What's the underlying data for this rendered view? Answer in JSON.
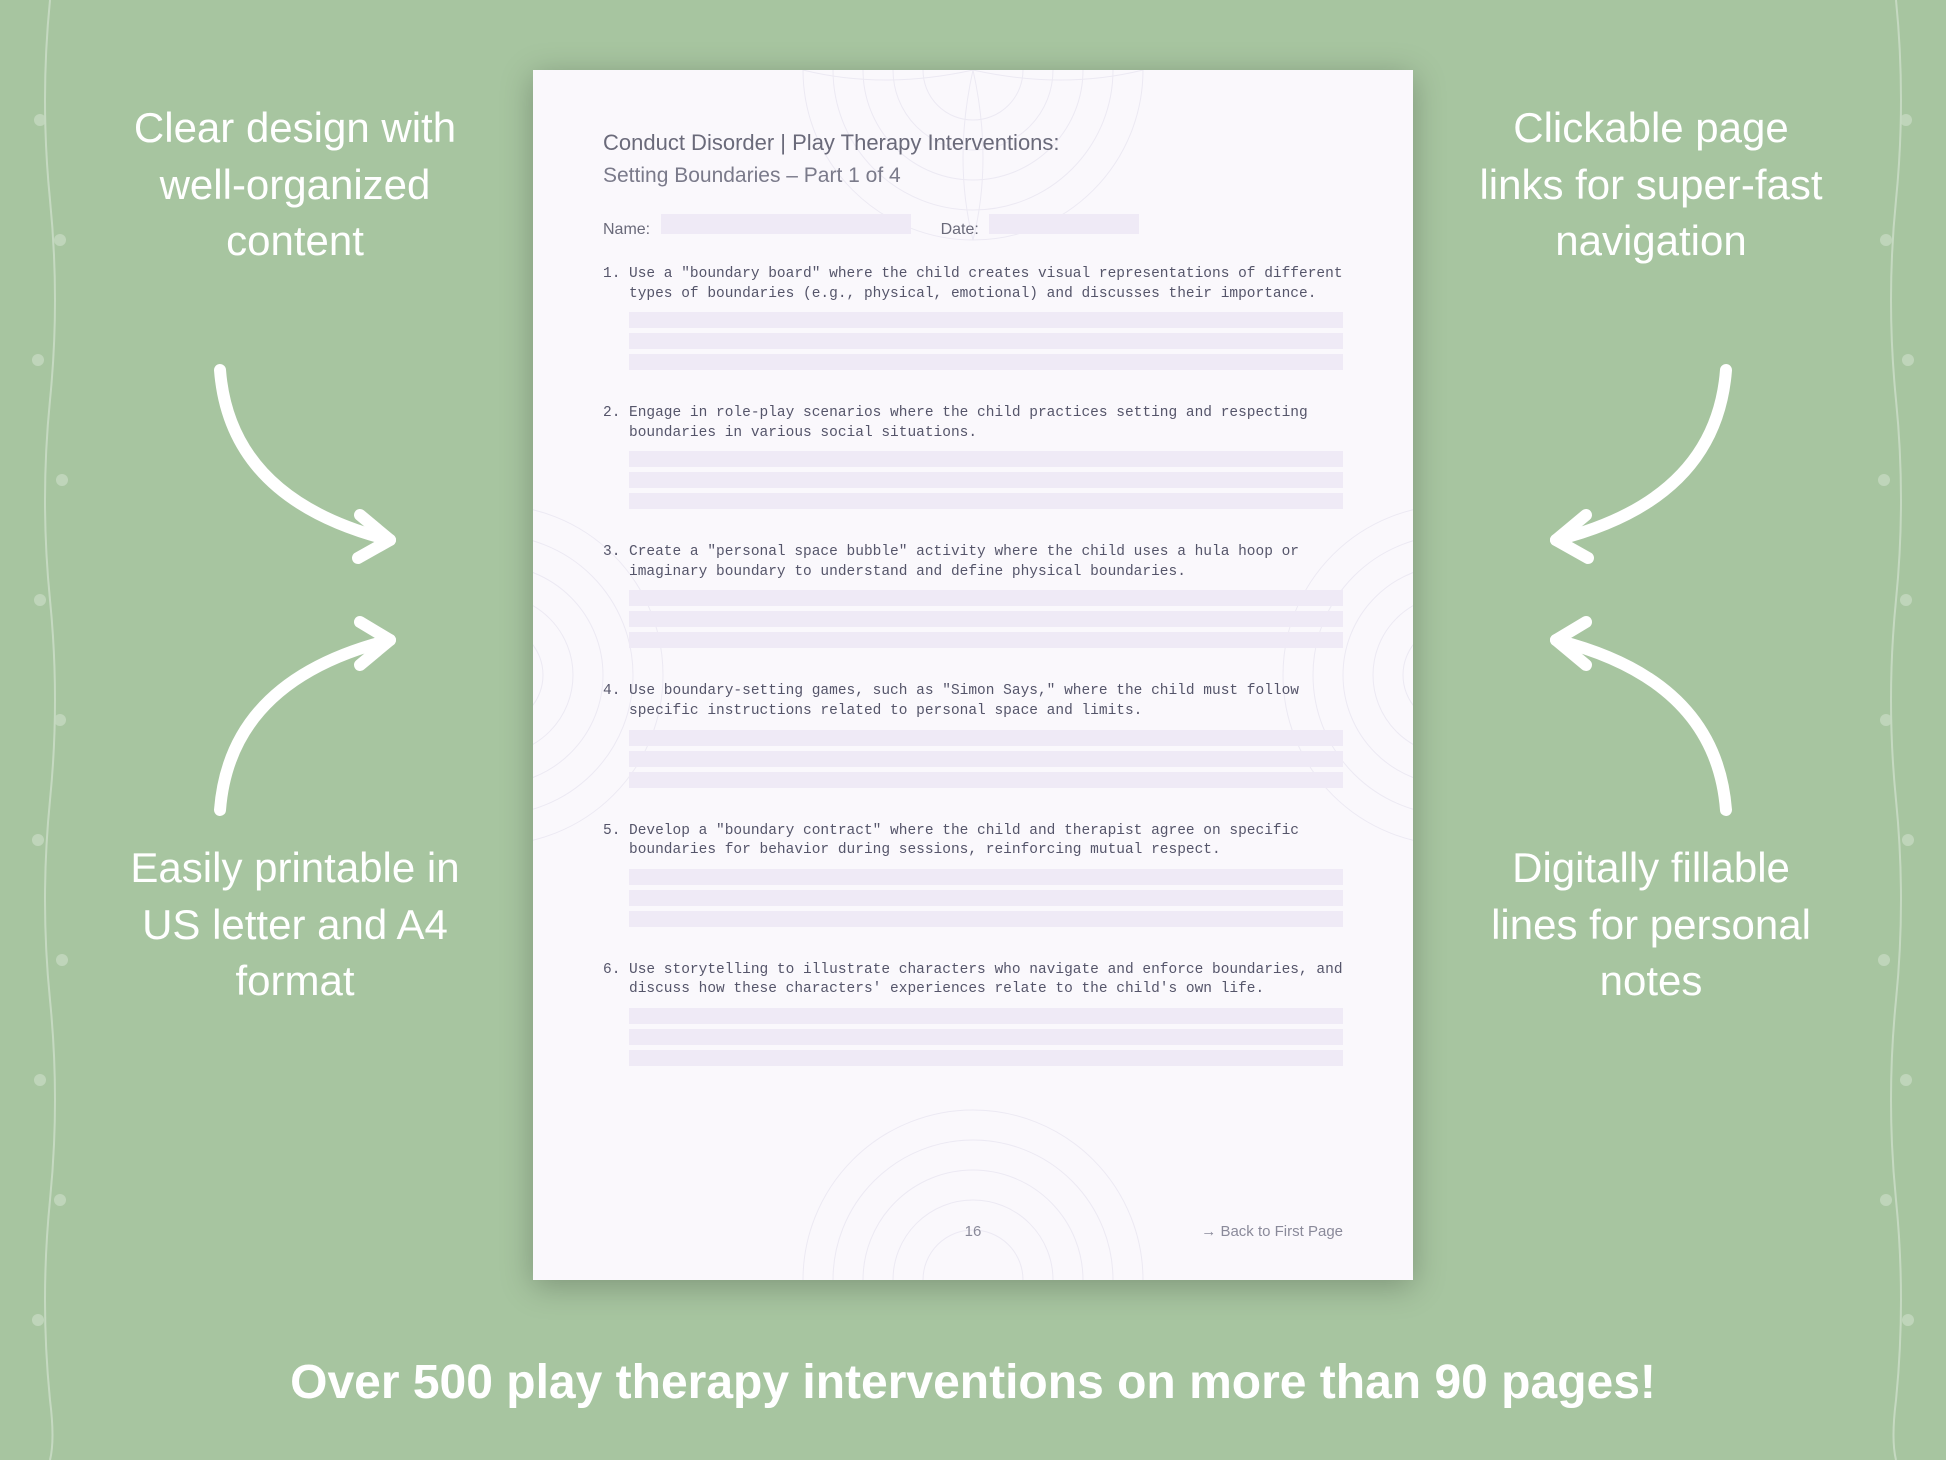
{
  "background_color": "#a7c5a0",
  "callouts": {
    "top_left": "Clear design with well-organized content",
    "top_right": "Clickable page links for super-fast navigation",
    "bottom_left": "Easily printable in US letter and A4 format",
    "bottom_right": "Digitally fillable lines for personal notes"
  },
  "banner": "Over 500 play therapy interventions on more than 90 pages!",
  "arrow_color": "#ffffff",
  "callout_color": "#ffffff",
  "callout_fontsize": 42,
  "banner_fontsize": 48,
  "document": {
    "page_bg": "#faf8fc",
    "field_bg": "#efeaf6",
    "heading_color": "#6a6a7a",
    "body_color": "#55556a",
    "mandala_color": "#b9b4d6",
    "title": "Conduct Disorder | Play Therapy Interventions:",
    "subtitle": "Setting Boundaries – Part 1 of 4",
    "name_label": "Name:",
    "date_label": "Date:",
    "items": [
      "Use a \"boundary board\" where the child creates visual representations of different types of boundaries (e.g., physical, emotional) and discusses their importance.",
      "Engage in role-play scenarios where the child practices setting and respecting boundaries in various social situations.",
      "Create a \"personal space bubble\" activity where the child uses a hula hoop or imaginary boundary to understand and define physical boundaries.",
      "Use boundary-setting games, such as \"Simon Says,\" where the child must follow specific instructions related to personal space and limits.",
      "Develop a \"boundary contract\" where the child and therapist agree on specific boundaries for behavior during sessions, reinforcing mutual respect.",
      "Use storytelling to illustrate characters who navigate and enforce boundaries, and discuss how these characters' experiences relate to the child's own life."
    ],
    "lines_per_item": 3,
    "page_number": "16",
    "back_link": "→ Back to First Page"
  }
}
